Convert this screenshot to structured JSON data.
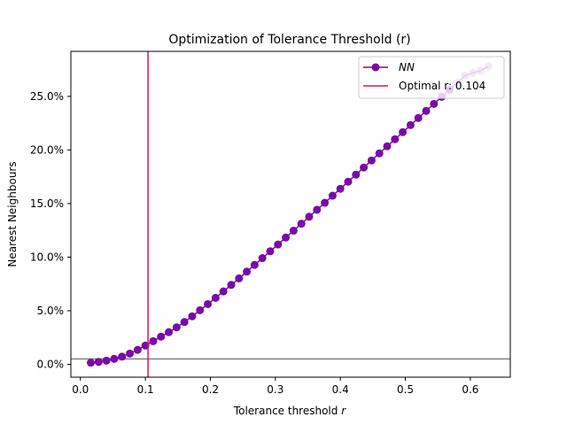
{
  "chart_data": {
    "type": "line",
    "title": "Optimization of Tolerance Threshold (r)",
    "xlabel": "Tolerance threshold",
    "xlabel_var": "r",
    "ylabel": "Nearest Neighbours",
    "xlim": [
      -0.0147,
      0.6615
    ],
    "ylim": [
      -0.012,
      0.292
    ],
    "xticks": [
      0.0,
      0.1,
      0.2,
      0.3,
      0.4,
      0.5,
      0.6
    ],
    "xtick_labels": [
      "0.0",
      "0.1",
      "0.2",
      "0.3",
      "0.4",
      "0.5",
      "0.6"
    ],
    "yticks": [
      0.0,
      0.05,
      0.1,
      0.15,
      0.2,
      0.25
    ],
    "ytick_labels": [
      "0.0%",
      "5.0%",
      "10.0%",
      "15.0%",
      "20.0%",
      "25.0%"
    ],
    "series": [
      {
        "name": "NN",
        "color": "#7a0aa8",
        "x": [
          0.016,
          0.028,
          0.04,
          0.052,
          0.064,
          0.076,
          0.088,
          0.1,
          0.112,
          0.124,
          0.136,
          0.148,
          0.16,
          0.172,
          0.184,
          0.196,
          0.208,
          0.22,
          0.232,
          0.244,
          0.256,
          0.268,
          0.28,
          0.292,
          0.304,
          0.316,
          0.328,
          0.34,
          0.352,
          0.364,
          0.376,
          0.388,
          0.4,
          0.412,
          0.424,
          0.436,
          0.448,
          0.46,
          0.472,
          0.484,
          0.496,
          0.508,
          0.52,
          0.532,
          0.544,
          0.556,
          0.568,
          0.58,
          0.592,
          0.604,
          0.616,
          0.628
        ],
        "y": [
          0.0015,
          0.0023,
          0.0034,
          0.0051,
          0.0072,
          0.01,
          0.0135,
          0.0175,
          0.0216,
          0.0258,
          0.03,
          0.0345,
          0.0395,
          0.0448,
          0.0505,
          0.0562,
          0.062,
          0.068,
          0.0741,
          0.0802,
          0.0865,
          0.0928,
          0.0991,
          0.1055,
          0.1118,
          0.1183,
          0.1247,
          0.1312,
          0.1377,
          0.1442,
          0.1507,
          0.1573,
          0.1638,
          0.1704,
          0.177,
          0.1836,
          0.1902,
          0.1968,
          0.2034,
          0.21,
          0.2166,
          0.2232,
          0.2298,
          0.2364,
          0.243,
          0.2496,
          0.2562,
          0.2628,
          0.2694,
          0.272,
          0.274,
          0.278
        ],
        "faded_from_x": 0.58
      }
    ],
    "vline": {
      "x": 0.104,
      "color": "#dc1457",
      "label": "Optimal r: 0.104"
    },
    "hline": {
      "y": 0.005,
      "color": "#808080"
    },
    "legend": {
      "placement": "top-right",
      "entries": [
        "NN",
        "Optimal r: 0.104"
      ]
    },
    "grid": false
  }
}
